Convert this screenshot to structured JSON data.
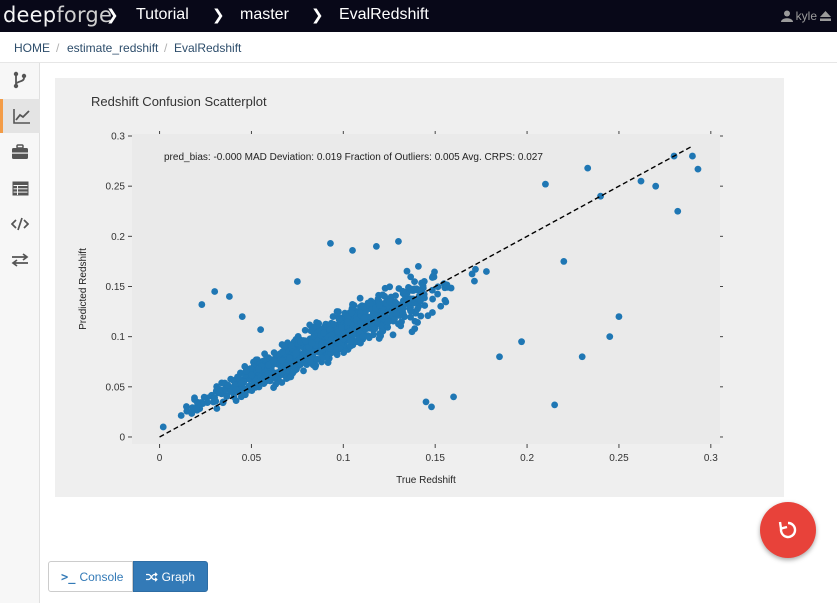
{
  "app": {
    "logo_part1": "deep",
    "logo_part2": "forge"
  },
  "topbar": {
    "crumbs": [
      "Tutorial",
      "master",
      "EvalRedshift"
    ],
    "user": "kyle"
  },
  "breadcrumb": {
    "items": [
      "HOME",
      "estimate_redshift",
      "EvalRedshift"
    ],
    "separator": "/"
  },
  "sidebar": {
    "items": [
      {
        "name": "branch-icon"
      },
      {
        "name": "chart-line-icon",
        "active": true
      },
      {
        "name": "briefcase-icon"
      },
      {
        "name": "table-icon"
      },
      {
        "name": "code-icon"
      },
      {
        "name": "transfer-icon"
      }
    ]
  },
  "colors": {
    "accent": "#f39c47",
    "point": "#1f77b4",
    "fab": "#e8423a",
    "primary": "#337ab7"
  },
  "buttons": {
    "console": "Console",
    "graph": "Graph"
  },
  "chart_data": {
    "type": "scatter",
    "title": "Redshift Confusion Scatterplot",
    "annotation": "pred_bias: -0.000 MAD Deviation: 0.019 Fraction of Outliers: 0.005 Avg. CRPS: 0.027",
    "xlabel": "True Redshift",
    "ylabel": "Predicted Redshift",
    "xlim": [
      -0.015,
      0.305
    ],
    "ylim": [
      -0.007,
      0.302
    ],
    "xticks": [
      0,
      0.05,
      0.1,
      0.15,
      0.2,
      0.25,
      0.3
    ],
    "xtick_labels": [
      "0",
      "0.05",
      "0.1",
      "0.15",
      "0.2",
      "0.25",
      "0.3"
    ],
    "yticks": [
      0,
      0.05,
      0.1,
      0.15,
      0.2,
      0.25,
      0.3
    ],
    "ytick_labels": [
      "0",
      "0.05",
      "0.1",
      "0.15",
      "0.2",
      "0.25",
      "0.3"
    ],
    "reference_line": {
      "style": "dashed",
      "x": [
        0,
        0.29
      ],
      "y": [
        0,
        0.29
      ]
    },
    "outliers": [
      [
        0.002,
        0.01
      ],
      [
        0.023,
        0.132
      ],
      [
        0.03,
        0.145
      ],
      [
        0.038,
        0.14
      ],
      [
        0.045,
        0.12
      ],
      [
        0.055,
        0.107
      ],
      [
        0.075,
        0.155
      ],
      [
        0.093,
        0.193
      ],
      [
        0.105,
        0.186
      ],
      [
        0.118,
        0.19
      ],
      [
        0.13,
        0.195
      ],
      [
        0.145,
        0.035
      ],
      [
        0.148,
        0.03
      ],
      [
        0.16,
        0.04
      ],
      [
        0.215,
        0.032
      ],
      [
        0.245,
        0.1
      ],
      [
        0.23,
        0.08
      ],
      [
        0.197,
        0.095
      ],
      [
        0.185,
        0.08
      ],
      [
        0.25,
        0.12
      ],
      [
        0.28,
        0.28
      ],
      [
        0.29,
        0.28
      ],
      [
        0.293,
        0.267
      ],
      [
        0.282,
        0.225
      ],
      [
        0.27,
        0.25
      ],
      [
        0.262,
        0.255
      ],
      [
        0.233,
        0.268
      ],
      [
        0.21,
        0.252
      ],
      [
        0.22,
        0.175
      ],
      [
        0.24,
        0.24
      ]
    ],
    "bulk_points": {
      "count": 1000,
      "true_min": 0.005,
      "true_max": 0.265,
      "distribution": "concentrated near 0.05-0.15, spread increasing with redshift",
      "slope": 0.93,
      "intercept": 0.012,
      "scatter": 0.022
    }
  }
}
